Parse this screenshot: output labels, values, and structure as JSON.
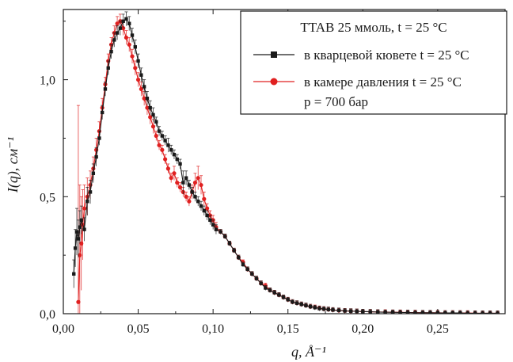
{
  "chart_data": {
    "type": "scatter",
    "xlabel": "q, Å⁻¹",
    "ylabel": "I(q), см⁻¹",
    "xlim": [
      0.0,
      0.295
    ],
    "ylim": [
      0.0,
      1.3
    ],
    "x_ticks": [
      0.0,
      0.05,
      0.1,
      0.15,
      0.2,
      0.25
    ],
    "x_tick_labels": [
      "0,00",
      "0,05",
      "0,10",
      "0,15",
      "0,20",
      "0,25"
    ],
    "y_ticks": [
      0.0,
      0.5,
      1.0
    ],
    "y_tick_labels": [
      "0,0",
      "0,5",
      "1,0"
    ],
    "grid": false,
    "legend": {
      "placement": "top-right",
      "title": "TTAB 25 ммоль, t = 25 °C",
      "entries": [
        {
          "label": "в кварцевой кювете t = 25 °C",
          "color": "#1a1a1a",
          "marker": "square"
        },
        {
          "label": "в камере давления t = 25 °C",
          "line2": "p = 700 бар",
          "color": "#e02020",
          "marker": "circle"
        }
      ]
    },
    "series": [
      {
        "name": "в кварцевой кювете t = 25 °C",
        "color": "#1a1a1a",
        "marker": "square",
        "x": [
          0.007,
          0.008,
          0.009,
          0.01,
          0.011,
          0.012,
          0.014,
          0.016,
          0.018,
          0.02,
          0.022,
          0.024,
          0.026,
          0.028,
          0.03,
          0.032,
          0.034,
          0.036,
          0.038,
          0.04,
          0.042,
          0.044,
          0.046,
          0.048,
          0.05,
          0.052,
          0.054,
          0.056,
          0.058,
          0.06,
          0.062,
          0.064,
          0.066,
          0.068,
          0.07,
          0.072,
          0.074,
          0.076,
          0.078,
          0.08,
          0.082,
          0.084,
          0.086,
          0.088,
          0.09,
          0.092,
          0.094,
          0.096,
          0.098,
          0.1,
          0.102,
          0.105,
          0.108,
          0.111,
          0.114,
          0.117,
          0.12,
          0.123,
          0.126,
          0.129,
          0.132,
          0.135,
          0.138,
          0.141,
          0.144,
          0.147,
          0.15,
          0.153,
          0.156,
          0.159,
          0.162,
          0.165,
          0.168,
          0.171,
          0.174,
          0.177,
          0.18,
          0.184,
          0.188,
          0.192,
          0.196,
          0.2,
          0.205,
          0.21,
          0.215,
          0.22,
          0.225,
          0.23,
          0.235,
          0.24,
          0.245,
          0.25,
          0.255,
          0.26,
          0.265,
          0.27,
          0.275,
          0.28,
          0.285,
          0.29
        ],
        "y": [
          0.17,
          0.28,
          0.35,
          0.32,
          0.37,
          0.4,
          0.36,
          0.48,
          0.52,
          0.6,
          0.67,
          0.75,
          0.86,
          0.96,
          1.05,
          1.12,
          1.17,
          1.2,
          1.22,
          1.25,
          1.26,
          1.24,
          1.19,
          1.14,
          1.08,
          1.02,
          0.97,
          0.92,
          0.88,
          0.85,
          0.82,
          0.78,
          0.76,
          0.74,
          0.72,
          0.7,
          0.68,
          0.66,
          0.64,
          0.56,
          0.58,
          0.55,
          0.52,
          0.5,
          0.48,
          0.46,
          0.44,
          0.42,
          0.4,
          0.38,
          0.36,
          0.35,
          0.33,
          0.3,
          0.27,
          0.24,
          0.21,
          0.19,
          0.17,
          0.15,
          0.13,
          0.11,
          0.1,
          0.09,
          0.08,
          0.07,
          0.06,
          0.05,
          0.045,
          0.04,
          0.035,
          0.03,
          0.026,
          0.022,
          0.02,
          0.018,
          0.016,
          0.014,
          0.012,
          0.011,
          0.01,
          0.009,
          0.008,
          0.007,
          0.006,
          0.006,
          0.005,
          0.005,
          0.004,
          0.004,
          0.004,
          0.003,
          0.003,
          0.003,
          0.003,
          0.002,
          0.002,
          0.002,
          0.002,
          0.002
        ],
        "err": [
          0.06,
          0.08,
          0.1,
          0.08,
          0.07,
          0.06,
          0.05,
          0.06,
          0.05,
          0.04,
          0.04,
          0.03,
          0.03,
          0.03,
          0.03,
          0.03,
          0.03,
          0.03,
          0.03,
          0.03,
          0.03,
          0.03,
          0.03,
          0.03,
          0.03,
          0.03,
          0.03,
          0.03,
          0.03,
          0.03,
          0.02,
          0.02,
          0.02,
          0.02,
          0.03,
          0.02,
          0.02,
          0.02,
          0.02,
          0.05,
          0.03,
          0.02,
          0.02,
          0.02,
          0.02,
          0.02,
          0.02,
          0.02,
          0.02,
          0.02,
          0.02,
          0.01,
          0.01,
          0.01,
          0.01,
          0.01,
          0.01,
          0.01,
          0.01,
          0.01,
          0.01,
          0.01,
          0.01,
          0.01,
          0.01,
          0.01,
          0.01,
          0.01,
          0.01,
          0.01,
          0.01,
          0.01,
          0.01,
          0.01,
          0.01,
          0.01,
          0.01,
          0.01,
          0.01,
          0.01,
          0.01,
          0.01,
          0.01,
          0.01,
          0.01,
          0.01,
          0.01,
          0.01,
          0.01,
          0.01,
          0.01,
          0.01,
          0.01,
          0.01,
          0.01,
          0.01,
          0.01,
          0.01,
          0.01,
          0.01
        ]
      },
      {
        "name": "в камере давления t = 25 °C, p = 700 бар",
        "color": "#e02020",
        "marker": "circle",
        "x": [
          0.01,
          0.011,
          0.012,
          0.013,
          0.014,
          0.016,
          0.018,
          0.02,
          0.022,
          0.024,
          0.026,
          0.028,
          0.03,
          0.032,
          0.034,
          0.036,
          0.038,
          0.04,
          0.042,
          0.044,
          0.046,
          0.048,
          0.05,
          0.052,
          0.054,
          0.056,
          0.058,
          0.06,
          0.062,
          0.064,
          0.066,
          0.068,
          0.07,
          0.072,
          0.074,
          0.076,
          0.078,
          0.08,
          0.082,
          0.084,
          0.086,
          0.088,
          0.09,
          0.092,
          0.094,
          0.096,
          0.098,
          0.1,
          0.102,
          0.105,
          0.108,
          0.111,
          0.114,
          0.117,
          0.12,
          0.123,
          0.126,
          0.129,
          0.132,
          0.135,
          0.138,
          0.141,
          0.144,
          0.147,
          0.15,
          0.153,
          0.156,
          0.159,
          0.162,
          0.165,
          0.168,
          0.171,
          0.174,
          0.177,
          0.18,
          0.184,
          0.188,
          0.192,
          0.196,
          0.2,
          0.205,
          0.21,
          0.215,
          0.22,
          0.225,
          0.23,
          0.235,
          0.24,
          0.245,
          0.25,
          0.255,
          0.26,
          0.265,
          0.27,
          0.275,
          0.28,
          0.285,
          0.29
        ],
        "y": [
          0.05,
          0.25,
          0.3,
          0.38,
          0.45,
          0.5,
          0.55,
          0.62,
          0.7,
          0.78,
          0.88,
          0.98,
          1.08,
          1.15,
          1.2,
          1.24,
          1.25,
          1.22,
          1.18,
          1.15,
          1.1,
          1.05,
          1.0,
          0.96,
          0.92,
          0.88,
          0.84,
          0.8,
          0.76,
          0.72,
          0.7,
          0.66,
          0.62,
          0.58,
          0.6,
          0.56,
          0.54,
          0.52,
          0.5,
          0.48,
          0.52,
          0.56,
          0.58,
          0.55,
          0.49,
          0.45,
          0.42,
          0.4,
          0.37,
          0.35,
          0.33,
          0.3,
          0.27,
          0.24,
          0.22,
          0.19,
          0.17,
          0.15,
          0.13,
          0.12,
          0.1,
          0.09,
          0.08,
          0.07,
          0.06,
          0.05,
          0.045,
          0.04,
          0.035,
          0.03,
          0.027,
          0.023,
          0.02,
          0.018,
          0.016,
          0.014,
          0.012,
          0.011,
          0.01,
          0.009,
          0.008,
          0.007,
          0.007,
          0.006,
          0.006,
          0.005,
          0.005,
          0.004,
          0.004,
          0.004,
          0.003,
          0.003,
          0.003,
          0.003,
          0.002,
          0.002,
          0.002,
          0.002
        ],
        "err": [
          0.84,
          0.3,
          0.2,
          0.15,
          0.1,
          0.08,
          0.06,
          0.05,
          0.05,
          0.04,
          0.04,
          0.03,
          0.03,
          0.03,
          0.03,
          0.03,
          0.03,
          0.03,
          0.03,
          0.03,
          0.03,
          0.03,
          0.03,
          0.03,
          0.03,
          0.03,
          0.03,
          0.03,
          0.02,
          0.02,
          0.02,
          0.02,
          0.02,
          0.02,
          0.03,
          0.02,
          0.02,
          0.02,
          0.02,
          0.02,
          0.03,
          0.04,
          0.05,
          0.04,
          0.03,
          0.02,
          0.02,
          0.02,
          0.02,
          0.01,
          0.01,
          0.01,
          0.01,
          0.01,
          0.01,
          0.01,
          0.01,
          0.01,
          0.01,
          0.01,
          0.01,
          0.01,
          0.01,
          0.01,
          0.01,
          0.01,
          0.01,
          0.01,
          0.01,
          0.01,
          0.01,
          0.01,
          0.01,
          0.01,
          0.01,
          0.01,
          0.01,
          0.01,
          0.01,
          0.01,
          0.01,
          0.01,
          0.01,
          0.01,
          0.01,
          0.01,
          0.01,
          0.01,
          0.01,
          0.01,
          0.01,
          0.01,
          0.01,
          0.01,
          0.01,
          0.01,
          0.01,
          0.01
        ]
      }
    ]
  }
}
